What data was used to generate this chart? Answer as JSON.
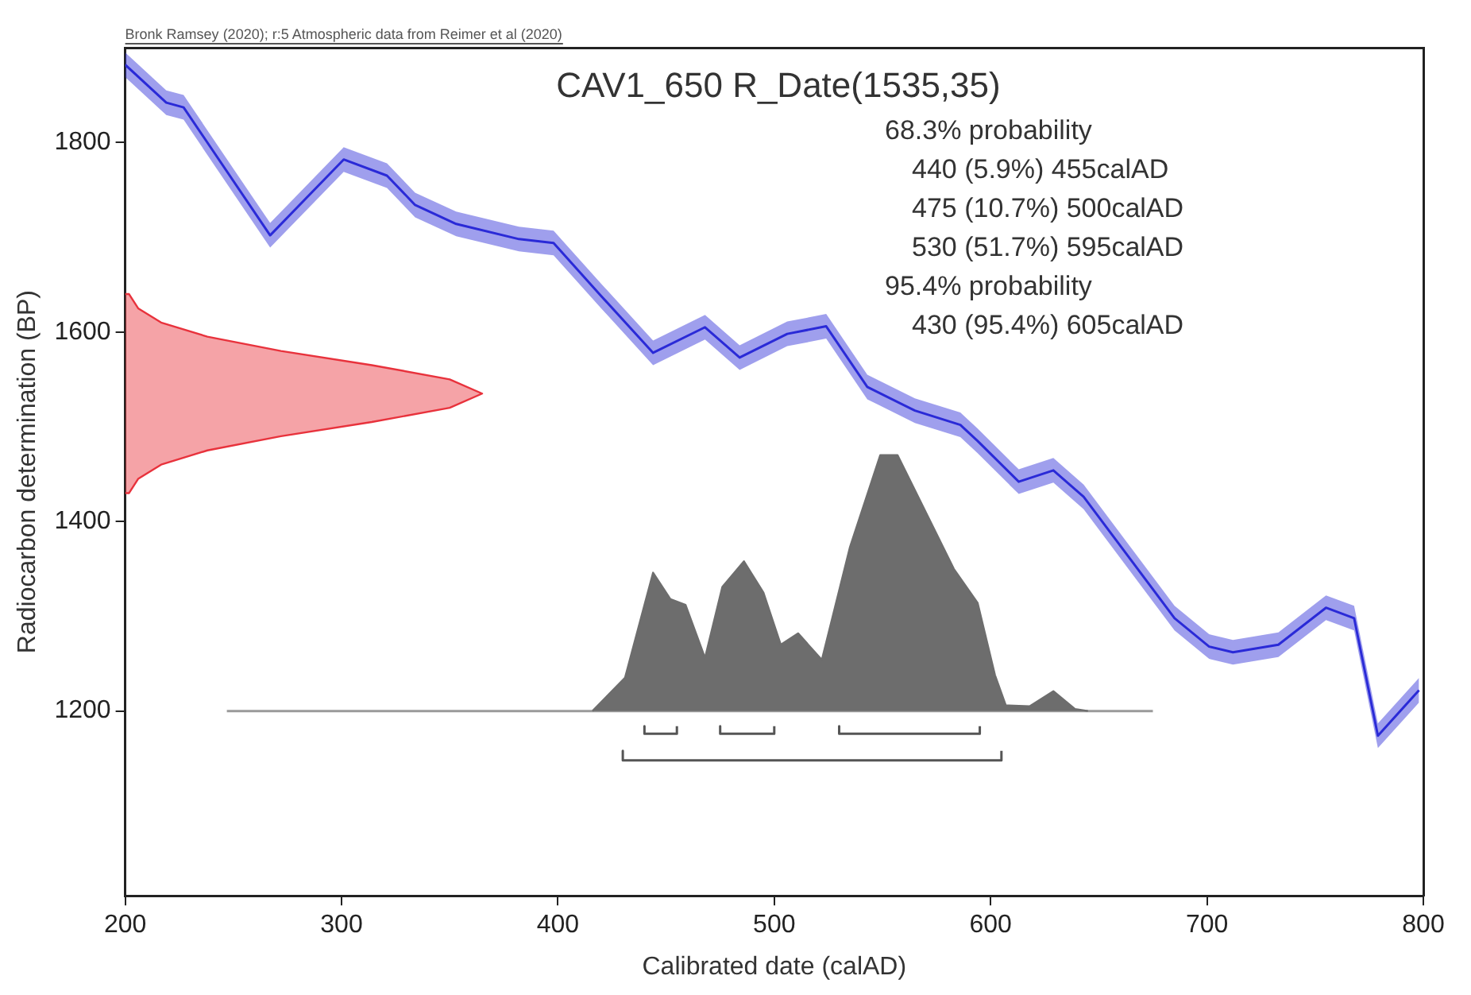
{
  "chart_data": {
    "type": "line",
    "title": "CAV1_650 R_Date(1535,35)",
    "xlabel": "Calibrated date (calAD)",
    "ylabel": "Radiocarbon determination (BP)",
    "xlim": [
      200,
      800
    ],
    "xticks": [
      200,
      300,
      400,
      500,
      600,
      700,
      800
    ],
    "ylim": [
      1005,
      1900
    ],
    "yticks": [
      1200,
      1400,
      1600,
      1800
    ],
    "grid": false,
    "legend": false,
    "marker": "none",
    "line_style": "solid",
    "annotations": [
      "Bronk Ramsey (2020); r:5 Atmospheric data from Reimer et al (2020)",
      "68.3% probability",
      "440 (5.9%) 455calAD",
      "475 (10.7%) 500calAD",
      "530 (51.7%) 595calAD",
      "95.4% probability",
      "430 (95.4%) 605calAD"
    ],
    "series": [
      {
        "type": "line",
        "color": "#2a2ad8",
        "x": [
          200,
          219,
          227,
          267,
          301,
          321,
          334,
          353,
          382,
          398,
          420,
          444,
          468,
          484,
          506,
          524,
          543,
          565,
          586,
          594,
          613,
          629,
          643,
          685,
          701,
          712,
          733,
          755,
          768,
          779,
          798
        ],
        "values": [
          1882,
          1842,
          1837,
          1702,
          1782,
          1765,
          1734,
          1714,
          1698,
          1694,
          1638,
          1578,
          1605,
          1573,
          1598,
          1606,
          1542,
          1517,
          1502,
          1485,
          1442,
          1454,
          1426,
          1298,
          1268,
          1262,
          1270,
          1309,
          1298,
          1174,
          1222
        ],
        "lower": [
          1869,
          1829,
          1824,
          1689,
          1769,
          1752,
          1721,
          1701,
          1685,
          1681,
          1625,
          1565,
          1592,
          1560,
          1585,
          1593,
          1529,
          1504,
          1489,
          1472,
          1429,
          1441,
          1413,
          1285,
          1255,
          1249,
          1257,
          1296,
          1285,
          1161,
          1209
        ],
        "upper": [
          1895,
          1855,
          1850,
          1715,
          1795,
          1778,
          1747,
          1727,
          1711,
          1707,
          1651,
          1591,
          1618,
          1586,
          1611,
          1619,
          1555,
          1530,
          1515,
          1498,
          1455,
          1467,
          1439,
          1311,
          1281,
          1275,
          1283,
          1322,
          1311,
          1187,
          1235
        ]
      },
      {
        "type": "area",
        "color": "#e8323c",
        "x": [
          200,
          201.8,
          206,
          216.6,
          238,
          272,
          314,
          350,
          365,
          350,
          314,
          272,
          238,
          216.6,
          206,
          201.8,
          200
        ],
        "values": [
          1430,
          1430,
          1445,
          1460,
          1475,
          1490,
          1505,
          1520,
          1535,
          1550,
          1565,
          1580,
          1595,
          1610,
          1625,
          1640,
          1640
        ]
      },
      {
        "type": "area",
        "color": "#6d6d6d",
        "x": [
          416,
          431,
          444,
          452,
          459,
          468,
          476,
          486,
          495,
          503,
          511,
          522,
          535,
          549,
          557,
          570,
          583,
          594,
          602,
          607,
          618,
          629,
          639,
          645
        ],
        "values": [
          1200,
          1235,
          1346,
          1318,
          1312,
          1256,
          1331,
          1358,
          1325,
          1270,
          1282,
          1254,
          1373,
          1470,
          1470,
          1410,
          1350,
          1314,
          1238,
          1206,
          1205,
          1221,
          1202,
          1200
        ]
      },
      {
        "type": "line",
        "color": "#9a9a9a",
        "x": [
          247,
          675
        ],
        "values": [
          1200,
          1200
        ]
      },
      {
        "type": "line",
        "color": "#555555",
        "x": [
          440,
          440,
          455,
          455
        ],
        "values": [
          1184,
          1176,
          1176,
          1184
        ]
      },
      {
        "type": "line",
        "color": "#555555",
        "x": [
          475,
          475,
          500,
          500
        ],
        "values": [
          1184,
          1176,
          1176,
          1184
        ]
      },
      {
        "type": "line",
        "color": "#555555",
        "x": [
          530,
          530,
          595,
          595
        ],
        "values": [
          1184,
          1176,
          1176,
          1184
        ]
      },
      {
        "type": "line",
        "color": "#555555",
        "x": [
          430,
          430,
          605,
          605
        ],
        "values": [
          1158,
          1148,
          1148,
          1158
        ]
      }
    ]
  }
}
